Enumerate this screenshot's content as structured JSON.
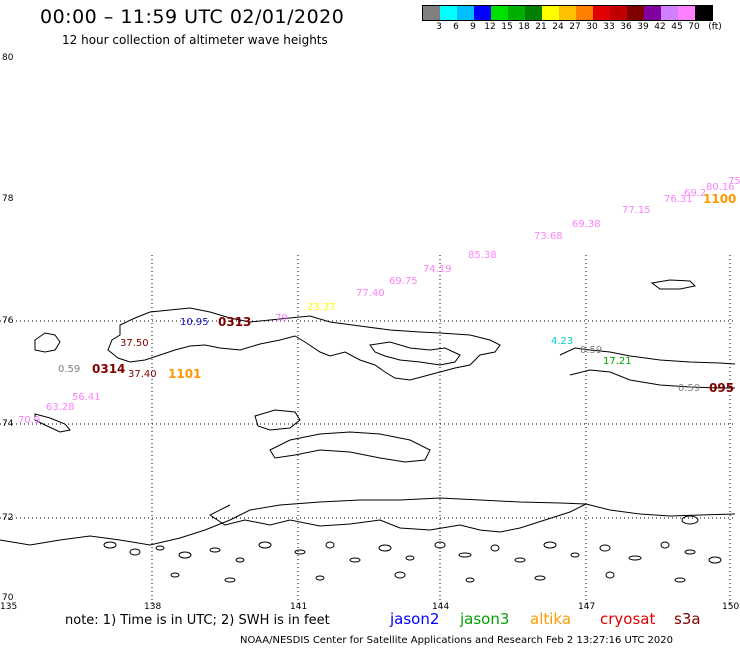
{
  "header": {
    "title": "00:00 – 11:59 UTC 02/01/2020",
    "subtitle": "12 hour collection of altimeter wave heights"
  },
  "scale": {
    "colors": [
      "#808080",
      "#00ffff",
      "#00bfff",
      "#0000ff",
      "#00e000",
      "#00b000",
      "#008000",
      "#ffff00",
      "#ffc000",
      "#ff8000",
      "#e00000",
      "#c00000",
      "#800000",
      "#8000a0",
      "#d080ff",
      "#ff80ff",
      "#000000"
    ],
    "labels": [
      "3",
      "6",
      "9",
      "12",
      "15",
      "18",
      "21",
      "24",
      "27",
      "30",
      "33",
      "36",
      "39",
      "42",
      "45",
      "70",
      "(ft)"
    ]
  },
  "axes": {
    "lat": [
      "80",
      "78",
      "76",
      "74",
      "72",
      "70"
    ],
    "lon": [
      "135",
      "138",
      "141",
      "144",
      "147",
      "150"
    ]
  },
  "observations": [
    {
      "text": "10.95",
      "color": "#1010c0"
    },
    {
      "text": "0313",
      "color": "#800000"
    },
    {
      "text": "79",
      "color": "#ff80ff"
    },
    {
      "text": "23.37",
      "color": "#ffff00"
    },
    {
      "text": "37.50",
      "color": "#800000"
    },
    {
      "text": "0.59",
      "color": "#808080"
    },
    {
      "text": "0314",
      "color": "#800000"
    },
    {
      "text": "37.40",
      "color": "#800000"
    },
    {
      "text": "1101",
      "color": "#ff9900"
    },
    {
      "text": "56.41",
      "color": "#ff80ff"
    },
    {
      "text": "63.28",
      "color": "#ff80ff"
    },
    {
      "text": "70.9",
      "color": "#ff80ff"
    },
    {
      "text": "77.40",
      "color": "#ff80ff"
    },
    {
      "text": "69.75",
      "color": "#ff80ff"
    },
    {
      "text": "74.19",
      "color": "#ff80ff"
    },
    {
      "text": "85.38",
      "color": "#ff80ff"
    },
    {
      "text": "73.68",
      "color": "#ff80ff"
    },
    {
      "text": "69.38",
      "color": "#ff80ff"
    },
    {
      "text": "77.15",
      "color": "#ff80ff"
    },
    {
      "text": "76.31",
      "color": "#ff80ff"
    },
    {
      "text": "69.2",
      "color": "#ff80ff"
    },
    {
      "text": "80.16",
      "color": "#ff80ff"
    },
    {
      "text": "75",
      "color": "#ff80ff"
    },
    {
      "text": "1100",
      "color": "#ff9900"
    },
    {
      "text": "4.23",
      "color": "#00cccc"
    },
    {
      "text": "0.59",
      "color": "#808080"
    },
    {
      "text": "17.21",
      "color": "#00a000"
    },
    {
      "text": "0.59",
      "color": "#808080"
    },
    {
      "text": "095",
      "color": "#800000"
    }
  ],
  "footer": {
    "note": "note: 1) Time is in UTC; 2) SWH is in feet",
    "satellites": [
      {
        "name": "jason2",
        "color": "#0000ff"
      },
      {
        "name": "jason3",
        "color": "#00a000"
      },
      {
        "name": "altika",
        "color": "#ff9900"
      },
      {
        "name": "cryosat",
        "color": "#e00000"
      },
      {
        "name": "s3a",
        "color": "#800000"
      }
    ],
    "credit": "NOAA/NESDIS Center for Satellite Applications and Research    Feb  2 13:27:16 UTC 2020"
  }
}
